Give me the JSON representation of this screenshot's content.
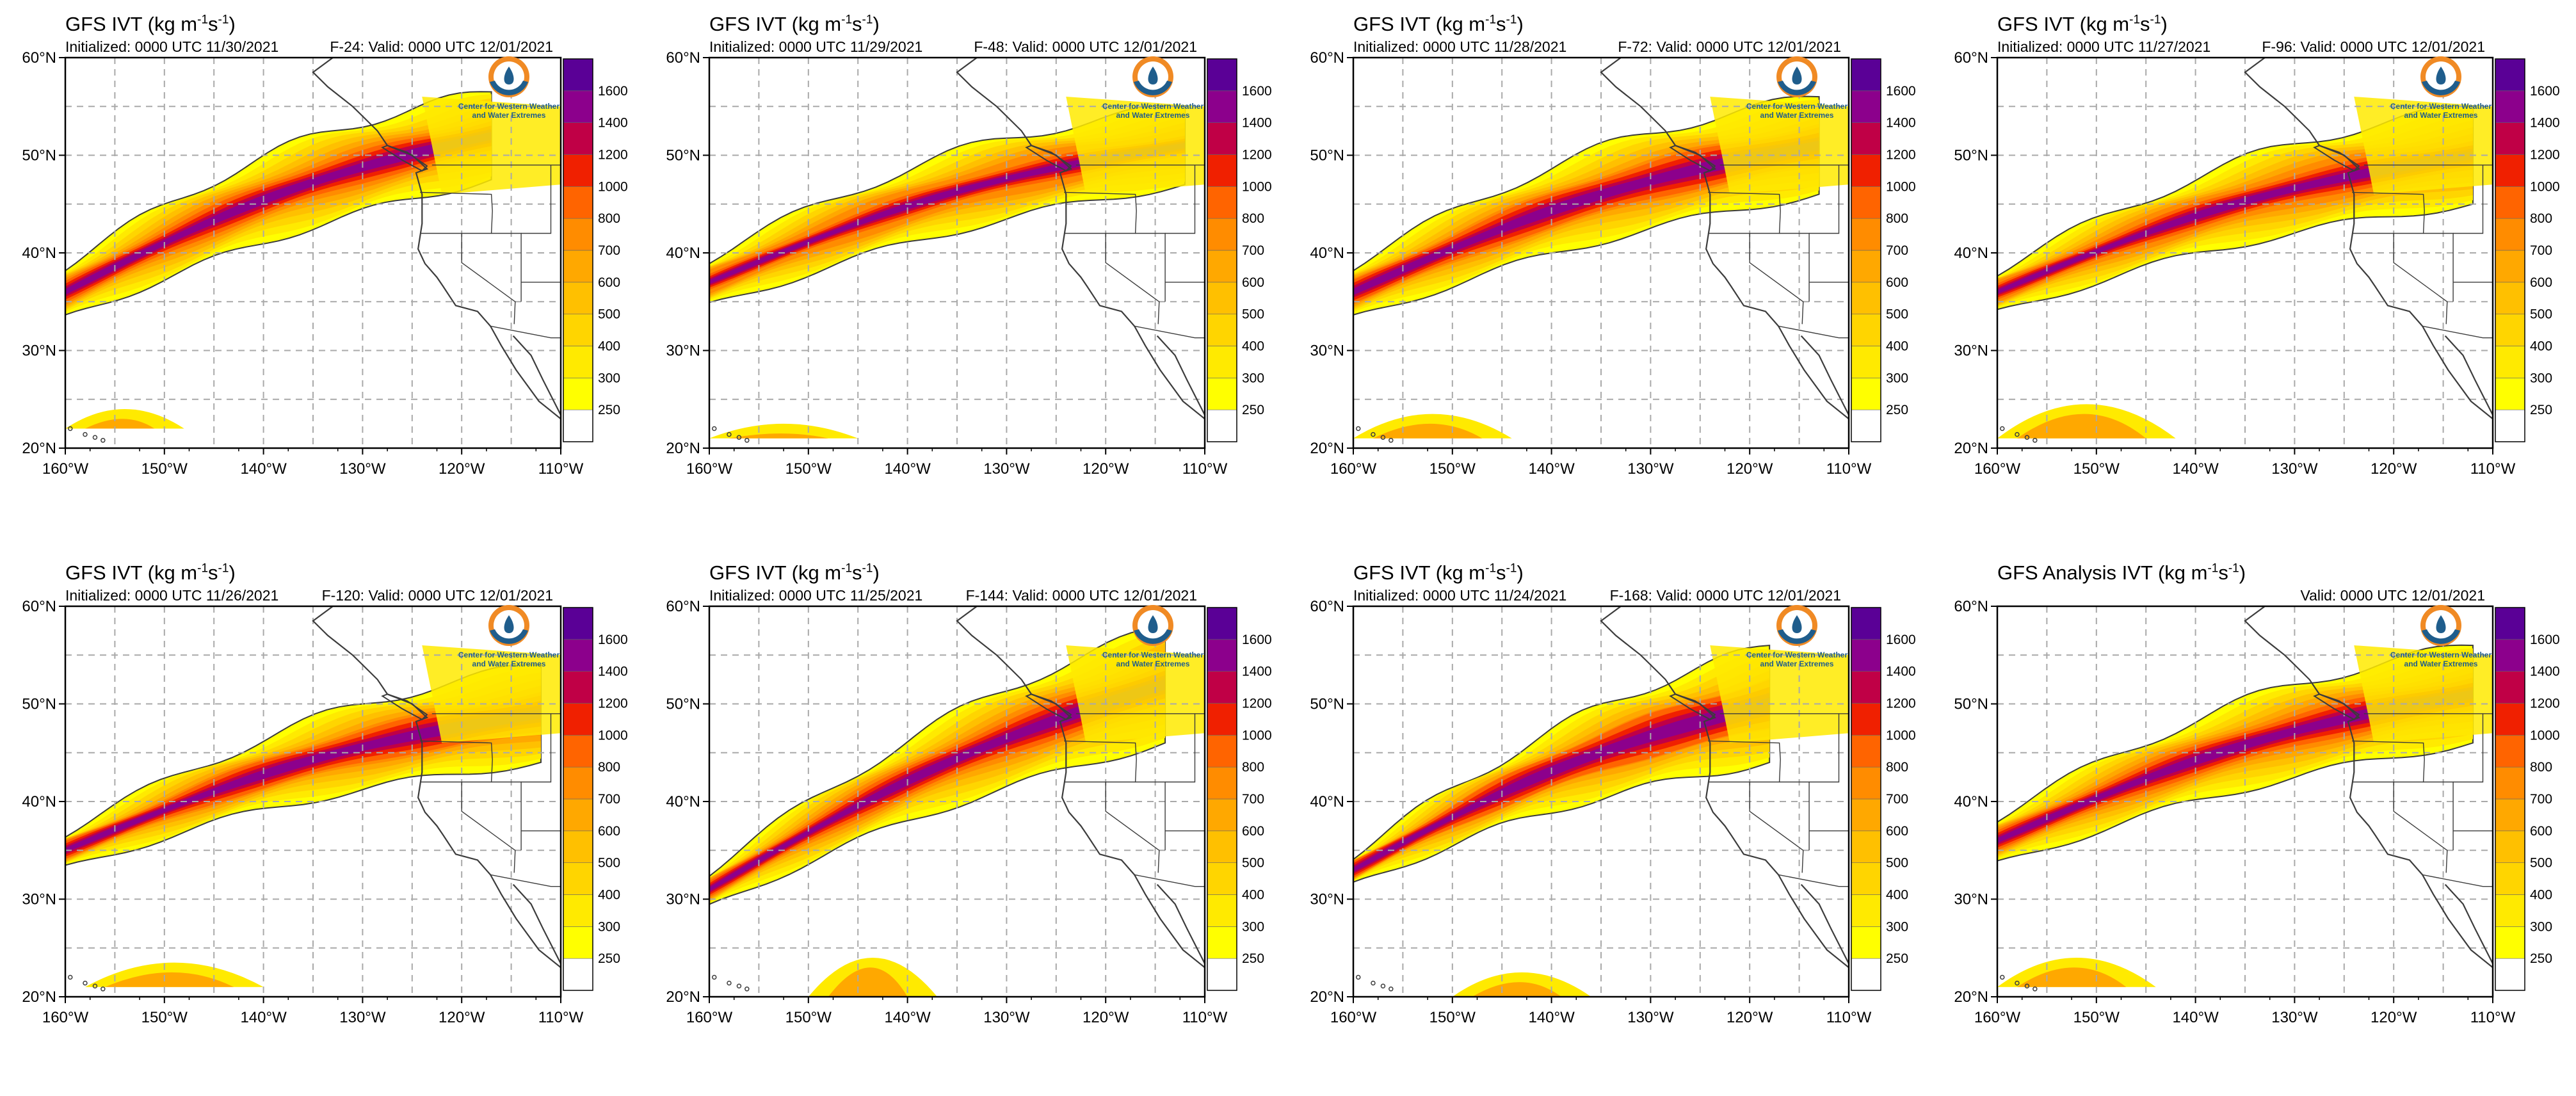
{
  "chart_data": [
    {
      "type": "map",
      "title": "GFS IVT (kg m",
      "title_sup1": "-1",
      "title_mid": "s",
      "title_sup2": "-1",
      "title_end": ")",
      "initialized": "Initialized: 0000 UTC 11/30/2021",
      "forecast": "F-24: Valid: 0000 UTC 12/01/2021",
      "xticks": [
        "160°W",
        "150°W",
        "140°W",
        "130°W",
        "120°W",
        "110°W"
      ],
      "yticks": [
        "60°N",
        "50°N",
        "40°N",
        "30°N",
        "20°N"
      ],
      "colorbar": {
        "levels": [
          250,
          300,
          400,
          500,
          600,
          700,
          800,
          1000,
          1200,
          1400,
          1600
        ],
        "labels": [
          "1600",
          "1400",
          "1200",
          "1000",
          "800",
          "700",
          "600",
          "500",
          "400",
          "300",
          "250"
        ]
      },
      "logo_text": [
        "Center for Western Weather",
        "and Water Extremes"
      ]
    },
    {
      "type": "map",
      "title": "GFS IVT (kg m",
      "title_sup1": "-1",
      "title_mid": "s",
      "title_sup2": "-1",
      "title_end": ")",
      "initialized": "Initialized: 0000 UTC 11/29/2021",
      "forecast": "F-48: Valid: 0000 UTC 12/01/2021",
      "xticks": [
        "160°W",
        "150°W",
        "140°W",
        "130°W",
        "120°W",
        "110°W"
      ],
      "yticks": [
        "60°N",
        "50°N",
        "40°N",
        "30°N",
        "20°N"
      ],
      "colorbar": {
        "levels": [
          250,
          300,
          400,
          500,
          600,
          700,
          800,
          1000,
          1200,
          1400,
          1600
        ],
        "labels": [
          "1600",
          "1400",
          "1200",
          "1000",
          "800",
          "700",
          "600",
          "500",
          "400",
          "300",
          "250"
        ]
      },
      "logo_text": [
        "Center for Western Weather",
        "and Water Extremes"
      ]
    },
    {
      "type": "map",
      "title": "GFS IVT (kg m",
      "title_sup1": "-1",
      "title_mid": "s",
      "title_sup2": "-1",
      "title_end": ")",
      "initialized": "Initialized: 0000 UTC 11/28/2021",
      "forecast": "F-72: Valid: 0000 UTC 12/01/2021",
      "xticks": [
        "160°W",
        "150°W",
        "140°W",
        "130°W",
        "120°W",
        "110°W"
      ],
      "yticks": [
        "60°N",
        "50°N",
        "40°N",
        "30°N",
        "20°N"
      ],
      "colorbar": {
        "levels": [
          250,
          300,
          400,
          500,
          600,
          700,
          800,
          1000,
          1200,
          1400,
          1600
        ],
        "labels": [
          "1600",
          "1400",
          "1200",
          "1000",
          "800",
          "700",
          "600",
          "500",
          "400",
          "300",
          "250"
        ]
      },
      "logo_text": [
        "Center for Western Weather",
        "and Water Extremes"
      ]
    },
    {
      "type": "map",
      "title": "GFS IVT (kg m",
      "title_sup1": "-1",
      "title_mid": "s",
      "title_sup2": "-1",
      "title_end": ")",
      "initialized": "Initialized: 0000 UTC 11/27/2021",
      "forecast": "F-96: Valid: 0000 UTC 12/01/2021",
      "xticks": [
        "160°W",
        "150°W",
        "140°W",
        "130°W",
        "120°W",
        "110°W"
      ],
      "yticks": [
        "60°N",
        "50°N",
        "40°N",
        "30°N",
        "20°N"
      ],
      "colorbar": {
        "levels": [
          250,
          300,
          400,
          500,
          600,
          700,
          800,
          1000,
          1200,
          1400,
          1600
        ],
        "labels": [
          "1600",
          "1400",
          "1200",
          "1000",
          "800",
          "700",
          "600",
          "500",
          "400",
          "300",
          "250"
        ]
      },
      "logo_text": [
        "Center for Western Weather",
        "and Water Extremes"
      ]
    },
    {
      "type": "map",
      "title": "GFS IVT (kg m",
      "title_sup1": "-1",
      "title_mid": "s",
      "title_sup2": "-1",
      "title_end": ")",
      "initialized": "Initialized: 0000 UTC 11/26/2021",
      "forecast": "F-120: Valid: 0000 UTC 12/01/2021",
      "xticks": [
        "160°W",
        "150°W",
        "140°W",
        "130°W",
        "120°W",
        "110°W"
      ],
      "yticks": [
        "60°N",
        "50°N",
        "40°N",
        "30°N",
        "20°N"
      ],
      "colorbar": {
        "levels": [
          250,
          300,
          400,
          500,
          600,
          700,
          800,
          1000,
          1200,
          1400,
          1600
        ],
        "labels": [
          "1600",
          "1400",
          "1200",
          "1000",
          "800",
          "700",
          "600",
          "500",
          "400",
          "300",
          "250"
        ]
      },
      "logo_text": [
        "Center for Western Weather",
        "and Water Extremes"
      ]
    },
    {
      "type": "map",
      "title": "GFS IVT (kg m",
      "title_sup1": "-1",
      "title_mid": "s",
      "title_sup2": "-1",
      "title_end": ")",
      "initialized": "Initialized: 0000 UTC 11/25/2021",
      "forecast": "F-144: Valid: 0000 UTC 12/01/2021",
      "xticks": [
        "160°W",
        "150°W",
        "140°W",
        "130°W",
        "120°W",
        "110°W"
      ],
      "yticks": [
        "60°N",
        "50°N",
        "40°N",
        "30°N",
        "20°N"
      ],
      "colorbar": {
        "levels": [
          250,
          300,
          400,
          500,
          600,
          700,
          800,
          1000,
          1200,
          1400,
          1600
        ],
        "labels": [
          "1600",
          "1400",
          "1200",
          "1000",
          "800",
          "700",
          "600",
          "500",
          "400",
          "300",
          "250"
        ]
      },
      "logo_text": [
        "Center for Western Weather",
        "and Water Extremes"
      ]
    },
    {
      "type": "map",
      "title": "GFS IVT (kg m",
      "title_sup1": "-1",
      "title_mid": "s",
      "title_sup2": "-1",
      "title_end": ")",
      "initialized": "Initialized: 0000 UTC 11/24/2021",
      "forecast": "F-168: Valid: 0000 UTC 12/01/2021",
      "xticks": [
        "160°W",
        "150°W",
        "140°W",
        "130°W",
        "120°W",
        "110°W"
      ],
      "yticks": [
        "60°N",
        "50°N",
        "40°N",
        "30°N",
        "20°N"
      ],
      "colorbar": {
        "levels": [
          250,
          300,
          400,
          500,
          600,
          700,
          800,
          1000,
          1200,
          1400,
          1600
        ],
        "labels": [
          "1600",
          "1400",
          "1200",
          "1000",
          "800",
          "700",
          "600",
          "500",
          "400",
          "300",
          "250"
        ]
      },
      "logo_text": [
        "Center for Western Weather",
        "and Water Extremes"
      ]
    },
    {
      "type": "map",
      "title": "GFS Analysis IVT (kg m",
      "title_sup1": "-1",
      "title_mid": "s",
      "title_sup2": "-1",
      "title_end": ")",
      "initialized": "",
      "forecast": "Valid: 0000 UTC 12/01/2021",
      "xticks": [
        "160°W",
        "150°W",
        "140°W",
        "130°W",
        "120°W",
        "110°W"
      ],
      "yticks": [
        "60°N",
        "50°N",
        "40°N",
        "30°N",
        "20°N"
      ],
      "colorbar": {
        "levels": [
          250,
          300,
          400,
          500,
          600,
          700,
          800,
          1000,
          1200,
          1400,
          1600
        ],
        "labels": [
          "1600",
          "1400",
          "1200",
          "1000",
          "800",
          "700",
          "600",
          "500",
          "400",
          "300",
          "250"
        ]
      },
      "logo_text": [
        "Center for Western Weather",
        "and Water Extremes"
      ]
    }
  ],
  "colors": {
    "ivt_ramp": [
      "#ffffff",
      "#ffff00",
      "#ffea00",
      "#ffd500",
      "#ffc000",
      "#ffa800",
      "#ff8c00",
      "#ff6400",
      "#f02000",
      "#c00046",
      "#8c008c",
      "#5a0096"
    ],
    "grid": "#a9a9a9",
    "coast": "#3c3c3c",
    "logo_orange": "#f08a24",
    "logo_blue": "#1f5d8c",
    "logo_text": "#1f5d8c"
  }
}
